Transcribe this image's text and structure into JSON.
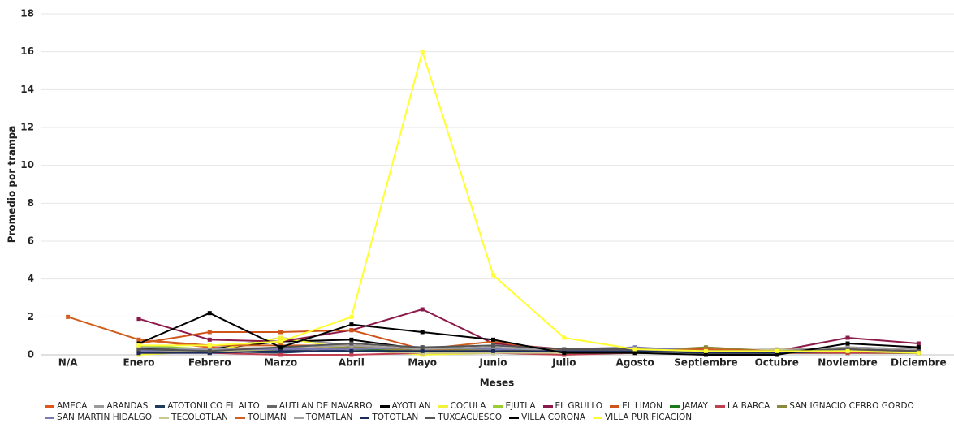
{
  "chart_data": {
    "type": "line",
    "y_label": "Promedio por trampa",
    "x_label": "Meses",
    "categories": [
      "N/A",
      "Enero",
      "Febrero",
      "Marzo",
      "Abril",
      "Mayo",
      "Junio",
      "Julio",
      "Agosto",
      "Septiembre",
      "Octubre",
      "Noviembre",
      "Diciembre"
    ],
    "ylim": [
      0,
      18
    ],
    "yticks": [
      0,
      2,
      4,
      6,
      8,
      10,
      12,
      14,
      16,
      18
    ],
    "grid": true,
    "series": [
      {
        "name": "AMECA",
        "color": "#e0541e",
        "values": [
          null,
          0.8,
          0.4,
          0.3,
          0.4,
          0.2,
          0.3,
          0.2,
          0.2,
          0.2,
          0.1,
          0.3,
          0.2
        ]
      },
      {
        "name": "ARANDAS",
        "color": "#9a9a9a",
        "values": [
          null,
          0.2,
          0.3,
          0.9,
          0.5,
          0.3,
          0.3,
          0.3,
          0.3,
          0.2,
          0.3,
          0.3,
          0.2
        ]
      },
      {
        "name": "ATOTONILCO EL ALTO",
        "color": "#1f3b5a",
        "values": [
          null,
          0.3,
          0.2,
          0.1,
          0.3,
          0.2,
          0.2,
          0.1,
          0.1,
          0.1,
          0.1,
          0.1,
          0.1
        ]
      },
      {
        "name": "AUTLAN DE NAVARRO",
        "color": "#666666",
        "values": [
          null,
          0.2,
          0.3,
          0.2,
          0.4,
          0.3,
          0.3,
          0.2,
          0.2,
          0.2,
          0.2,
          0.4,
          0.3
        ]
      },
      {
        "name": "AYOTLAN",
        "color": "#000000",
        "values": [
          null,
          0.3,
          0.3,
          0.7,
          0.8,
          0.3,
          0.4,
          0.1,
          0.1,
          0.1,
          0.1,
          0.2,
          0.2
        ]
      },
      {
        "name": "COCULA",
        "color": "#f2f23a",
        "values": [
          null,
          0,
          0.2,
          0.9,
          0.3,
          0,
          0.1,
          0.1,
          0.1,
          0.1,
          0.1,
          0.1,
          0.1
        ]
      },
      {
        "name": "EJUTLA",
        "color": "#9acd32",
        "values": [
          null,
          0.5,
          0.3,
          0.3,
          0.3,
          0.1,
          0.2,
          0.1,
          0.1,
          0.1,
          0.1,
          0.1,
          0.1
        ]
      },
      {
        "name": "EL GRULLO",
        "color": "#8b1a4a",
        "values": [
          null,
          1.9,
          0.8,
          0.7,
          1.3,
          2.4,
          0.6,
          0.3,
          0.3,
          0.3,
          0.2,
          0.9,
          0.6
        ]
      },
      {
        "name": "EL LIMON",
        "color": "#d0541a",
        "values": [
          null,
          0.6,
          1.2,
          1.2,
          1.3,
          0.3,
          0.2,
          0.1,
          0.1,
          0.1,
          0.1,
          0.2,
          0.1
        ]
      },
      {
        "name": "JAMAY",
        "color": "#1a7a1a",
        "values": [
          null,
          0.4,
          0.3,
          0.3,
          0.3,
          0.2,
          0.2,
          0.1,
          0.1,
          0.1,
          0.1,
          0.1,
          0.1
        ]
      },
      {
        "name": "LA BARCA",
        "color": "#c04050",
        "values": [
          null,
          0.1,
          0.1,
          0,
          0,
          0.1,
          0.1,
          0,
          0.1,
          0.1,
          0.1,
          0.1,
          0.1
        ]
      },
      {
        "name": "SAN IGNACIO CERRO GORDO",
        "color": "#8a8a3a",
        "values": [
          null,
          0.2,
          0.2,
          0.3,
          0.4,
          0.2,
          0.3,
          0.2,
          0.2,
          0.4,
          0.2,
          0.2,
          0.2
        ]
      },
      {
        "name": "SAN MARTIN HIDALGO",
        "color": "#7a7ab0",
        "values": [
          null,
          0.2,
          0.3,
          0.3,
          0.3,
          0.4,
          0.3,
          0.3,
          0.4,
          0.2,
          0.2,
          0.3,
          0.2
        ]
      },
      {
        "name": "TECOLOTLAN",
        "color": "#c8c890",
        "values": [
          null,
          0.1,
          0.2,
          0.2,
          0.2,
          0.1,
          0.1,
          0.1,
          0.1,
          0.1,
          0.3,
          0.2,
          0.1
        ]
      },
      {
        "name": "TOLIMAN",
        "color": "#d06020",
        "values": [
          2,
          0.8,
          0.5,
          0.5,
          0.5,
          0.3,
          0.7,
          0.2,
          0.2,
          0.3,
          0.2,
          0.3,
          0.2
        ]
      },
      {
        "name": "TOMATLAN",
        "color": "#a0a0a0",
        "values": [
          null,
          0.4,
          0.3,
          0.4,
          0.5,
          0.3,
          0.4,
          0.2,
          0.2,
          0.2,
          0.2,
          0.4,
          0.3
        ]
      },
      {
        "name": "TOTOTLAN",
        "color": "#1a2a5a",
        "values": [
          null,
          0.1,
          0.1,
          0.2,
          0.2,
          0.2,
          0.2,
          0.2,
          0.2,
          0.1,
          0.1,
          0.2,
          0.1
        ]
      },
      {
        "name": "TUXCACUESCO",
        "color": "#555555",
        "values": [
          null,
          0.3,
          0.2,
          0.4,
          0.6,
          0.4,
          0.5,
          0.3,
          0.3,
          0.2,
          0.2,
          0.3,
          0.2
        ]
      },
      {
        "name": "VILLA CORONA",
        "color": "#000000",
        "values": [
          null,
          0.6,
          2.2,
          0.4,
          1.6,
          1.2,
          0.8,
          0.1,
          0.1,
          0,
          0,
          0.6,
          0.4
        ]
      },
      {
        "name": "VILLA PURIFICACION",
        "color": "#ffff33",
        "values": [
          null,
          0.5,
          0.5,
          0.7,
          2,
          16,
          4.2,
          0.9,
          0.3,
          0.2,
          0.2,
          0.2,
          0.1
        ]
      }
    ]
  }
}
